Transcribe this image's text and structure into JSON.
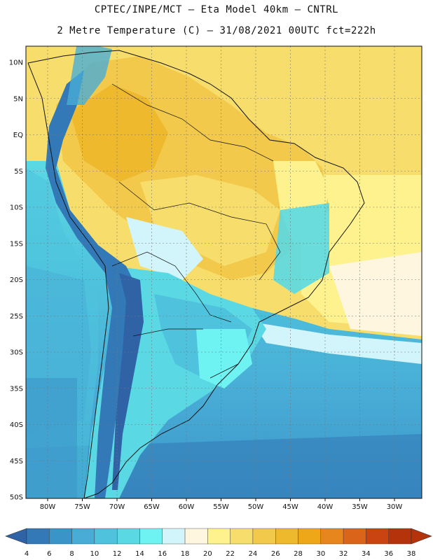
{
  "title_line1": "CPTEC/INPE/MCT –  Eta Model 40km – CNTRL",
  "title_line2": "2 Metre Temperature (C) – 31/08/2021 00UTC fct=222h",
  "lat_labels": [
    "10N",
    "5N",
    "EQ",
    "5S",
    "10S",
    "15S",
    "20S",
    "25S",
    "30S",
    "35S",
    "40S",
    "45S",
    "50S"
  ],
  "lon_labels": [
    "80W",
    "75W",
    "70W",
    "65W",
    "60W",
    "55W",
    "50W",
    "45W",
    "40W",
    "35W",
    "30W"
  ],
  "colorbar": {
    "ticks": [
      "4",
      "6",
      "8",
      "10",
      "12",
      "14",
      "16",
      "18",
      "20",
      "22",
      "24",
      "26",
      "28",
      "30",
      "32",
      "34",
      "36",
      "38"
    ],
    "colors": [
      "#2f63a6",
      "#3379b7",
      "#3b94c8",
      "#48acd6",
      "#4fc3dd",
      "#5ad9e4",
      "#6ef2f2",
      "#d2f5fb",
      "#fff6e0",
      "#fdf28d",
      "#f7de6c",
      "#f2c94a",
      "#efb92e",
      "#eda719",
      "#e6861d",
      "#d9641a",
      "#c94410",
      "#b4330b"
    ]
  }
}
